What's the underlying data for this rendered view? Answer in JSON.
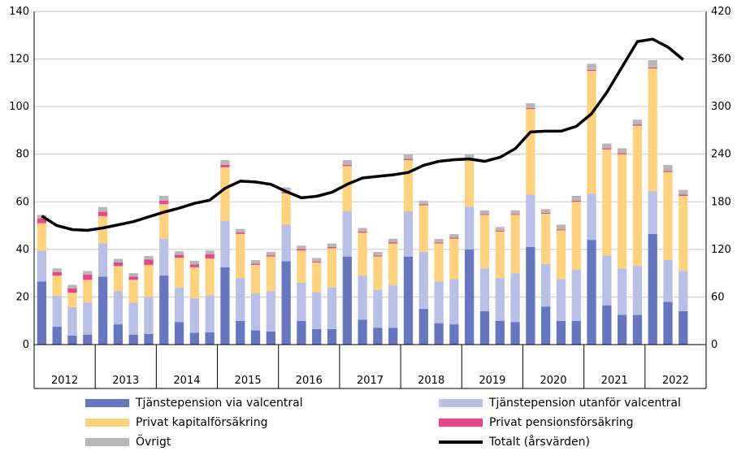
{
  "chart_data": {
    "type": "bar",
    "stacked": true,
    "y_left": {
      "min": 0,
      "max": 140,
      "step": 20
    },
    "y_right": {
      "min": 0,
      "max": 420,
      "step": 60
    },
    "years": [
      "2012",
      "2013",
      "2014",
      "2015",
      "2016",
      "2017",
      "2018",
      "2019",
      "2020",
      "2021",
      "2022"
    ],
    "quarters_per_year": 4,
    "grid": true,
    "legend_position": "bottom",
    "series": [
      {
        "name": "Tjänstepension via valcentral",
        "color": "#6677c0",
        "values": [
          26.5,
          7.5,
          3.8,
          4.2,
          28.5,
          8.5,
          4.2,
          4.5,
          29,
          9.5,
          5,
          5.2,
          32.5,
          10,
          6,
          5.5,
          35,
          10,
          6.5,
          6.5,
          37,
          10.5,
          7,
          7,
          37,
          15,
          9,
          8.5,
          40,
          14,
          10,
          9.5,
          41,
          16,
          10,
          10,
          44,
          16.5,
          12.5,
          12.5,
          46.5,
          18,
          14
        ]
      },
      {
        "name": "Tjänstepension utanför valcentral",
        "color": "#b8c0e6",
        "values": [
          13,
          13,
          12,
          13.5,
          14,
          14,
          13.5,
          15.5,
          15.5,
          14.5,
          14.5,
          15.5,
          19.5,
          18,
          15.5,
          17,
          15.5,
          16,
          15.5,
          17.5,
          19,
          18.5,
          16,
          18,
          19,
          24,
          17.5,
          19,
          18,
          18,
          18,
          20.5,
          22,
          18,
          17.5,
          21.5,
          19.5,
          21,
          19.5,
          20.5,
          18,
          17.5,
          17
        ]
      },
      {
        "name": "Privat kapitalförsäkring",
        "color": "#ffd27f",
        "values": [
          11.5,
          8.5,
          6,
          9.5,
          11.5,
          10.5,
          9.5,
          13.5,
          14.5,
          12.5,
          13,
          15.5,
          22.5,
          18.5,
          12,
          14.5,
          13,
          13.5,
          12.5,
          16.5,
          19,
          18,
          14,
          17.5,
          21.5,
          19.5,
          16,
          17,
          19.5,
          22.5,
          19.5,
          24.5,
          36,
          21,
          20.5,
          28.5,
          51.5,
          44.5,
          48,
          59,
          51.5,
          37,
          31.5
        ]
      },
      {
        "name": "Privat pensionsförsäkring",
        "color": "#e8468a",
        "values": [
          2,
          1.5,
          1.8,
          2.2,
          1.8,
          1.5,
          1.3,
          2.2,
          1.5,
          1.2,
          1.2,
          1.8,
          1,
          0.6,
          0.5,
          0.5,
          0.5,
          0.6,
          0.4,
          0.5,
          0.5,
          0.5,
          0.4,
          0.5,
          0.5,
          0.4,
          0.4,
          0.4,
          0.4,
          0.4,
          0.4,
          0.4,
          0.4,
          0.4,
          0.4,
          0.5,
          0.5,
          0.5,
          0.5,
          0.5,
          0.5,
          0.5,
          0.5
        ]
      },
      {
        "name": "Övrigt",
        "color": "#b7b7b7",
        "values": [
          1.5,
          1.5,
          1.5,
          1.5,
          2,
          1.5,
          1.5,
          1.5,
          2,
          1.5,
          1.5,
          1.5,
          2,
          1.5,
          1.5,
          1.5,
          2,
          1.5,
          1.5,
          1.5,
          2,
          1.5,
          1.5,
          1.5,
          2,
          1.5,
          1.5,
          1.5,
          2,
          1.5,
          1.5,
          1.5,
          2,
          1.5,
          2,
          2,
          2.5,
          2,
          2,
          2,
          3,
          2.5,
          2
        ]
      }
    ],
    "line": {
      "name": "Totalt (årsvärden)",
      "color": "#000000",
      "axis": "right",
      "values": [
        162,
        150,
        145,
        144,
        147,
        151,
        155,
        161,
        167,
        172,
        178,
        182,
        197,
        206,
        205,
        202,
        193,
        185,
        187,
        192,
        202,
        210,
        212,
        214,
        217,
        226,
        231,
        233,
        234,
        231,
        236,
        247,
        268,
        269,
        269,
        275,
        291,
        318,
        350,
        382,
        385,
        375,
        359
      ]
    }
  }
}
